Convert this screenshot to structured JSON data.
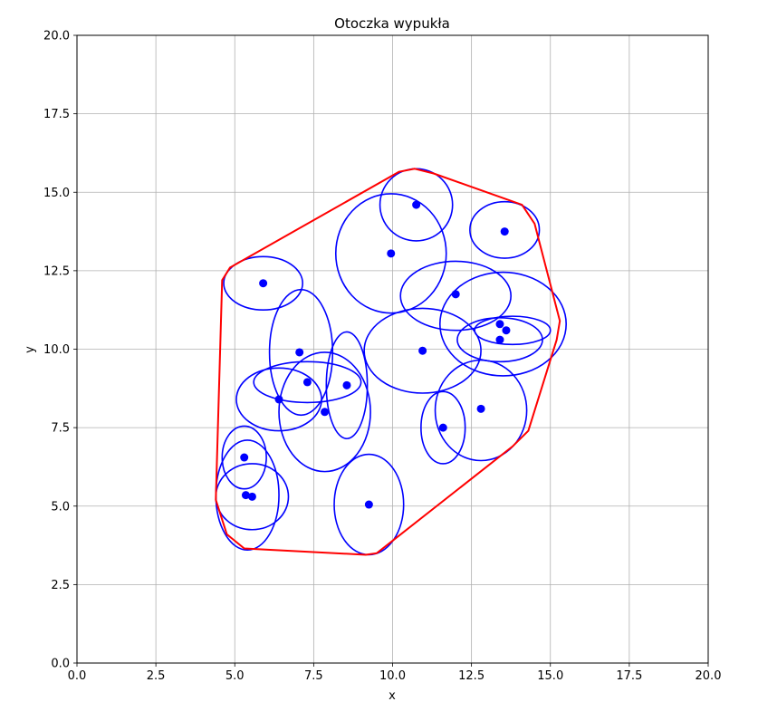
{
  "chart_data": {
    "type": "scatter",
    "title": "Otoczka wypukła",
    "xlabel": "x",
    "ylabel": "y",
    "xlim": [
      0,
      20
    ],
    "ylim": [
      0,
      20
    ],
    "xticks": [
      "0.0",
      "2.5",
      "5.0",
      "7.5",
      "10.0",
      "12.5",
      "15.0",
      "17.5",
      "20.0"
    ],
    "yticks": [
      "0.0",
      "2.5",
      "5.0",
      "7.5",
      "10.0",
      "12.5",
      "15.0",
      "17.5",
      "20.0"
    ],
    "grid": true,
    "colors": {
      "points": "#0000ff",
      "ellipses": "#0000ff",
      "hull": "#ff0000",
      "grid": "#b0b0b0"
    },
    "points": [
      {
        "x": 10.75,
        "y": 14.6
      },
      {
        "x": 13.55,
        "y": 13.75
      },
      {
        "x": 9.95,
        "y": 13.05
      },
      {
        "x": 5.9,
        "y": 12.1
      },
      {
        "x": 12.0,
        "y": 11.75
      },
      {
        "x": 13.4,
        "y": 10.8
      },
      {
        "x": 13.6,
        "y": 10.6
      },
      {
        "x": 13.4,
        "y": 10.3
      },
      {
        "x": 7.05,
        "y": 9.9
      },
      {
        "x": 10.95,
        "y": 9.95
      },
      {
        "x": 7.3,
        "y": 8.95
      },
      {
        "x": 8.55,
        "y": 8.85
      },
      {
        "x": 6.4,
        "y": 8.4
      },
      {
        "x": 7.85,
        "y": 8.0
      },
      {
        "x": 12.8,
        "y": 8.1
      },
      {
        "x": 11.6,
        "y": 7.5
      },
      {
        "x": 5.3,
        "y": 6.55
      },
      {
        "x": 5.35,
        "y": 5.35
      },
      {
        "x": 5.55,
        "y": 5.3
      },
      {
        "x": 9.25,
        "y": 5.05
      }
    ],
    "ellipses": [
      {
        "cx": 10.75,
        "cy": 14.6,
        "rx": 1.15,
        "ry": 1.15
      },
      {
        "cx": 13.55,
        "cy": 13.8,
        "rx": 1.1,
        "ry": 0.9
      },
      {
        "cx": 9.95,
        "cy": 13.05,
        "rx": 1.75,
        "ry": 1.9
      },
      {
        "cx": 5.9,
        "cy": 12.1,
        "rx": 1.25,
        "ry": 0.85
      },
      {
        "cx": 12.0,
        "cy": 11.7,
        "rx": 1.75,
        "ry": 1.1
      },
      {
        "cx": 13.5,
        "cy": 10.8,
        "rx": 2.0,
        "ry": 1.65
      },
      {
        "cx": 13.8,
        "cy": 10.6,
        "rx": 1.2,
        "ry": 0.45
      },
      {
        "cx": 13.4,
        "cy": 10.3,
        "rx": 1.35,
        "ry": 0.7
      },
      {
        "cx": 7.1,
        "cy": 9.9,
        "rx": 1.0,
        "ry": 2.0
      },
      {
        "cx": 10.95,
        "cy": 9.95,
        "rx": 1.85,
        "ry": 1.35
      },
      {
        "cx": 7.3,
        "cy": 8.95,
        "rx": 1.7,
        "ry": 0.65
      },
      {
        "cx": 8.55,
        "cy": 8.85,
        "rx": 0.65,
        "ry": 1.7
      },
      {
        "cx": 6.4,
        "cy": 8.4,
        "rx": 1.35,
        "ry": 1.0
      },
      {
        "cx": 7.85,
        "cy": 8.0,
        "rx": 1.45,
        "ry": 1.9
      },
      {
        "cx": 12.8,
        "cy": 8.05,
        "rx": 1.45,
        "ry": 1.6
      },
      {
        "cx": 11.6,
        "cy": 7.5,
        "rx": 0.7,
        "ry": 1.15
      },
      {
        "cx": 5.3,
        "cy": 6.55,
        "rx": 0.7,
        "ry": 1.0
      },
      {
        "cx": 5.4,
        "cy": 5.35,
        "rx": 1.0,
        "ry": 1.75
      },
      {
        "cx": 5.55,
        "cy": 5.3,
        "rx": 1.15,
        "ry": 1.05
      },
      {
        "cx": 9.25,
        "cy": 5.05,
        "rx": 1.1,
        "ry": 1.6
      }
    ],
    "hull": [
      [
        10.7,
        15.75
      ],
      [
        11.3,
        15.6
      ],
      [
        14.1,
        14.6
      ],
      [
        14.5,
        14.0
      ],
      [
        15.3,
        10.9
      ],
      [
        15.2,
        10.3
      ],
      [
        14.3,
        7.4
      ],
      [
        13.8,
        6.9
      ],
      [
        9.5,
        3.5
      ],
      [
        9.15,
        3.45
      ],
      [
        5.3,
        3.65
      ],
      [
        4.75,
        4.1
      ],
      [
        4.4,
        5.2
      ],
      [
        4.6,
        12.2
      ],
      [
        4.85,
        12.6
      ],
      [
        10.2,
        15.65
      ]
    ]
  }
}
